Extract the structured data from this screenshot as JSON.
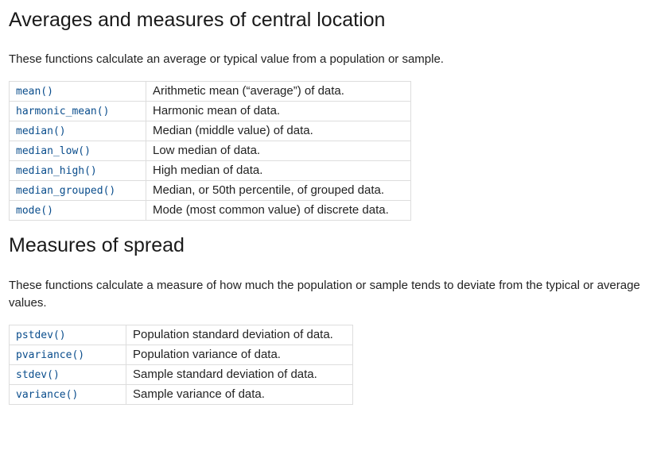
{
  "central": {
    "heading": "Averages and measures of central location",
    "intro": "These functions calculate an average or typical value from a population or sample.",
    "rows": [
      {
        "fn": "mean()",
        "desc": "Arithmetic mean (“average”) of data."
      },
      {
        "fn": "harmonic_mean()",
        "desc": "Harmonic mean of data."
      },
      {
        "fn": "median()",
        "desc": "Median (middle value) of data."
      },
      {
        "fn": "median_low()",
        "desc": "Low median of data."
      },
      {
        "fn": "median_high()",
        "desc": "High median of data."
      },
      {
        "fn": "median_grouped()",
        "desc": "Median, or 50th percentile, of grouped data."
      },
      {
        "fn": "mode()",
        "desc": "Mode (most common value) of discrete data."
      }
    ]
  },
  "spread": {
    "heading": "Measures of spread",
    "intro": "These functions calculate a measure of how much the population or sample tends to deviate from the typical or average values.",
    "rows": [
      {
        "fn": "pstdev()",
        "desc": "Population standard deviation of data."
      },
      {
        "fn": "pvariance()",
        "desc": "Population variance of data."
      },
      {
        "fn": "stdev()",
        "desc": "Sample standard deviation of data."
      },
      {
        "fn": "variance()",
        "desc": "Sample variance of data."
      }
    ]
  }
}
